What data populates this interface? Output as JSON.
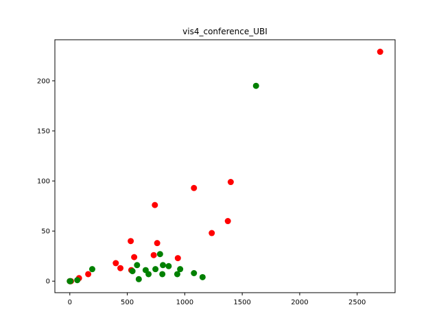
{
  "chart_data": {
    "type": "scatter",
    "title": "vis4_conference_UBI",
    "xlabel": "",
    "ylabel": "",
    "xlim": [
      -130,
      2830
    ],
    "ylim": [
      -11.5,
      241
    ],
    "xticks": [
      0,
      500,
      1000,
      1500,
      2000,
      2500
    ],
    "yticks": [
      0,
      50,
      100,
      150,
      200
    ],
    "grid": false,
    "series": [
      {
        "color": "#ff0000",
        "points": [
          [
            0,
            0
          ],
          [
            5,
            0
          ],
          [
            10,
            0
          ],
          [
            80,
            3
          ],
          [
            160,
            7
          ],
          [
            400,
            18
          ],
          [
            440,
            13
          ],
          [
            530,
            40
          ],
          [
            535,
            11
          ],
          [
            560,
            24
          ],
          [
            730,
            26
          ],
          [
            740,
            76
          ],
          [
            760,
            38
          ],
          [
            940,
            23
          ],
          [
            1080,
            93
          ],
          [
            1235,
            48
          ],
          [
            1375,
            60
          ],
          [
            1400,
            99
          ],
          [
            2700,
            229
          ]
        ]
      },
      {
        "color": "#008000",
        "points": [
          [
            0,
            0
          ],
          [
            5,
            0
          ],
          [
            65,
            1
          ],
          [
            195,
            12
          ],
          [
            545,
            10
          ],
          [
            585,
            16
          ],
          [
            600,
            2
          ],
          [
            660,
            11
          ],
          [
            685,
            7
          ],
          [
            745,
            12
          ],
          [
            785,
            27
          ],
          [
            805,
            7
          ],
          [
            810,
            16
          ],
          [
            860,
            15
          ],
          [
            935,
            7
          ],
          [
            960,
            12
          ],
          [
            1080,
            8
          ],
          [
            1155,
            4
          ],
          [
            1620,
            195
          ]
        ]
      }
    ]
  }
}
